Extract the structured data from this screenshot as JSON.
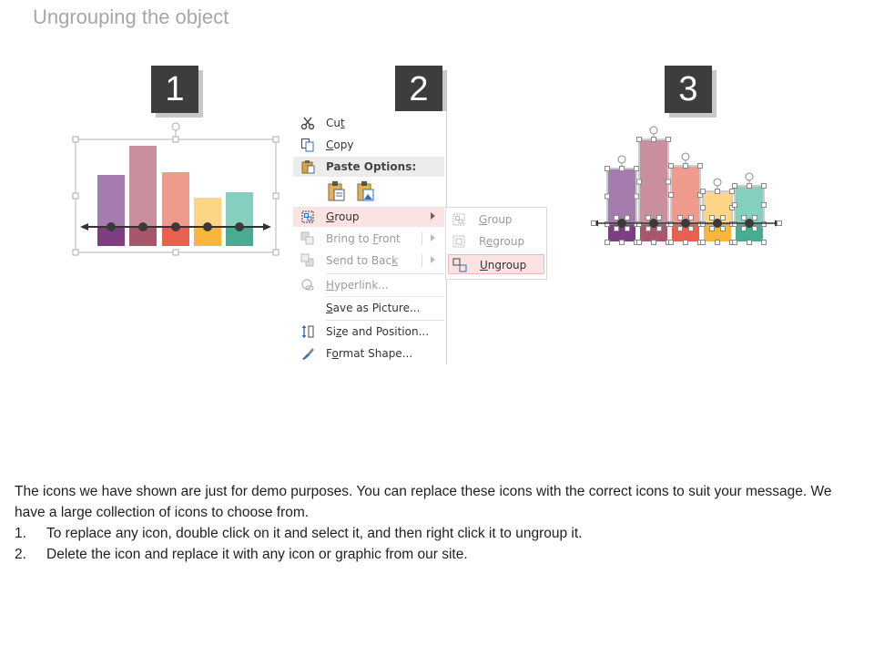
{
  "title": "Ungrouping the object",
  "steps": [
    "1",
    "2",
    "3"
  ],
  "colors": {
    "purple": "#a57cae",
    "mauve": "#c98f9c",
    "salmon": "#ee9a8d",
    "yellow": "#fcd684",
    "teal": "#85cfc0",
    "purple_dark": "#7e3f82",
    "mauve_dark": "#a8566b",
    "salmon_dark": "#e8604f",
    "yellow_dark": "#f9b53d",
    "teal_dark": "#48ac93"
  },
  "context_menu": {
    "cut": "Cut",
    "copy": "Copy",
    "paste_options": "Paste Options:",
    "group": "Group",
    "bring_to_front": "Bring to Front",
    "send_to_back": "Send to Back",
    "hyperlink": "Hyperlink...",
    "save_as_picture": "Save as Picture...",
    "size_and_position": "Size and Position...",
    "format_shape": "Format Shape..."
  },
  "submenu": {
    "group": "Group",
    "regroup": "Regroup",
    "ungroup": "Ungroup"
  },
  "description": {
    "intro": "The icons we have shown are just for demo purposes. You can replace these icons with the correct icons to suit your message. We have a large collection of icons to choose from.",
    "items": [
      {
        "num": "1.",
        "text": "To replace any icon, double click on it and select it, and then right click it to ungroup it."
      },
      {
        "num": "2.",
        "text": "Delete the icon and replace it with any icon or graphic from our site."
      }
    ]
  }
}
